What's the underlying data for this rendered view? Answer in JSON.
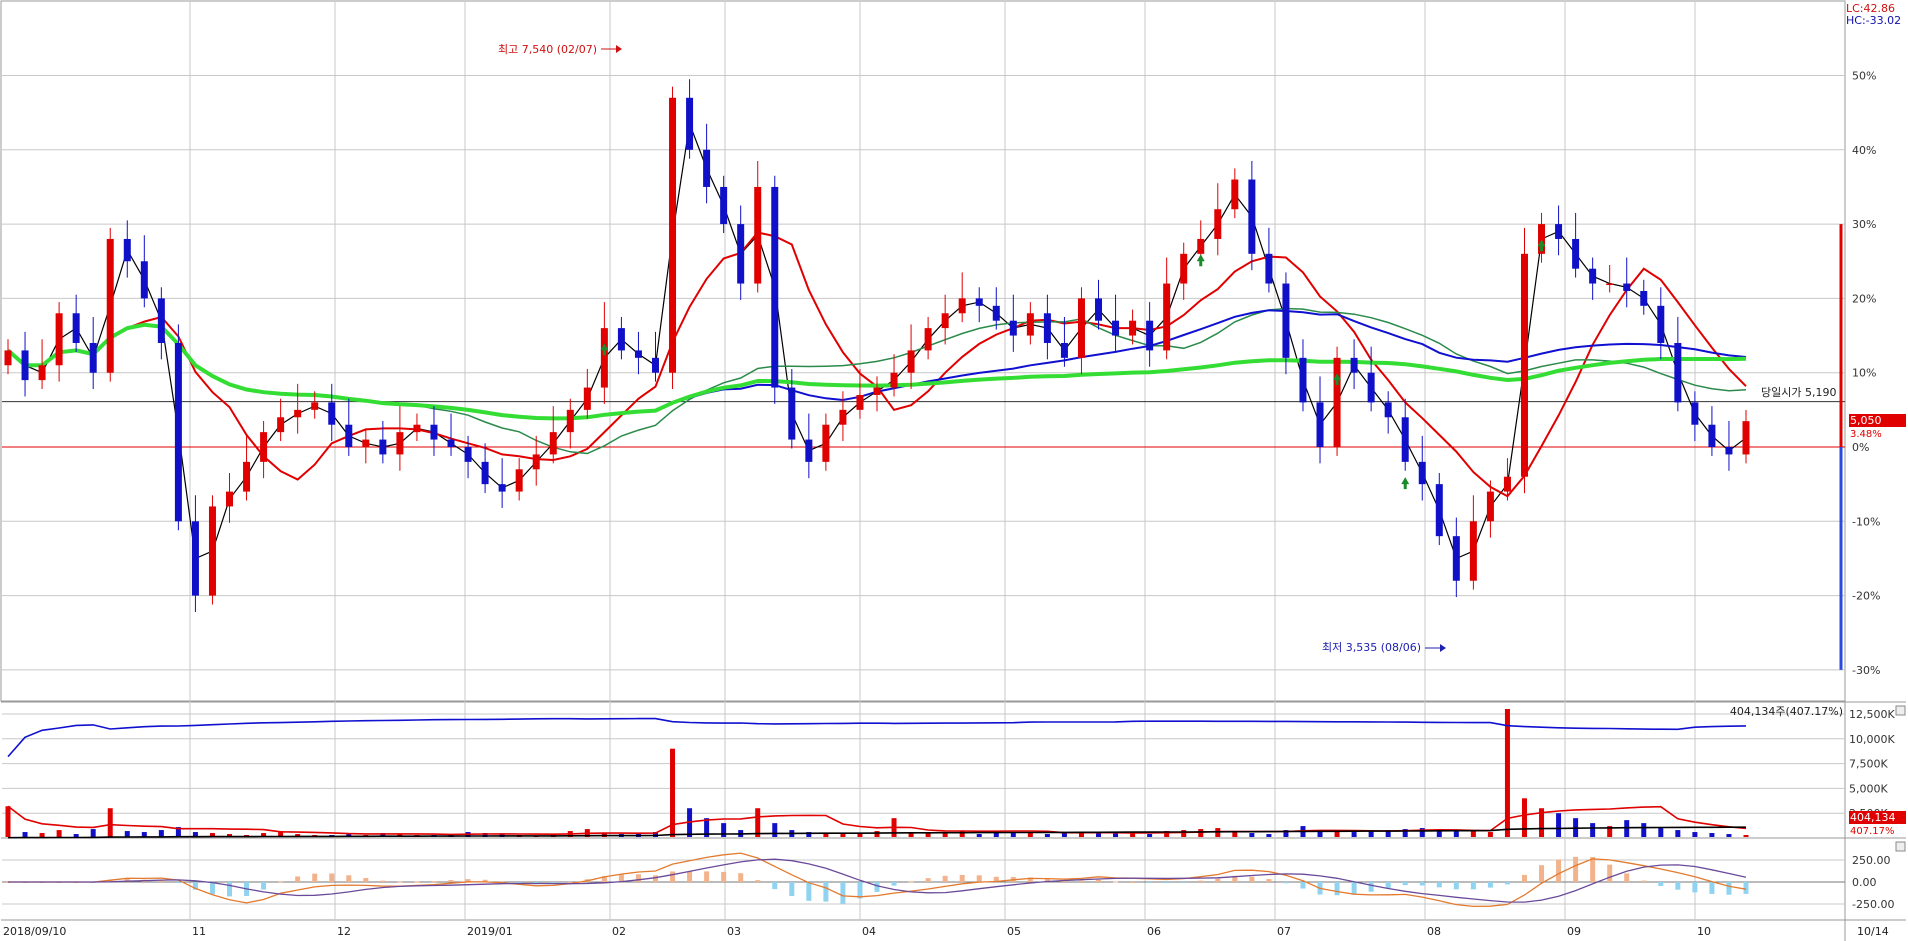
{
  "header": {
    "lc_label": "LC:42.86",
    "hc_label": "HC:-33.02"
  },
  "chart_data": [
    {
      "type": "candlestick",
      "panel": "price",
      "y_axis_ticks": [
        "50%",
        "40%",
        "30%",
        "20%",
        "10%",
        "0%",
        "-10%",
        "-20%",
        "-30%"
      ],
      "y_axis_values": [
        50,
        40,
        30,
        20,
        10,
        0,
        -10,
        -20,
        -30
      ],
      "ylim": [
        -33.02,
        42.86
      ],
      "x_axis_labels": [
        "2018/09/10",
        "11",
        "12",
        "2019/01",
        "02",
        "03",
        "04",
        "05",
        "06",
        "07",
        "08",
        "09",
        "10",
        "10/14"
      ],
      "annotations": {
        "high": "최고 7,540 (02/07)",
        "low": "최저 3,535 (08/06)",
        "open_today": "당일시가 5,190",
        "current_price": "5,050",
        "current_change": "3.48%"
      },
      "reference_open_pct": 6.1,
      "current_pct": 3.48,
      "series": [
        {
          "role": "price",
          "close_pct": [
            13,
            9,
            11,
            18,
            14,
            10,
            28,
            25,
            20,
            14,
            -10,
            -20,
            -8,
            -6,
            -2,
            2,
            4,
            5,
            6,
            3,
            0,
            1,
            -1,
            2,
            3,
            1,
            0,
            -2,
            -5,
            -6,
            -3,
            -1,
            2,
            5,
            8,
            16,
            13,
            12,
            10,
            47,
            40,
            35,
            30,
            22,
            35,
            8,
            1,
            -2,
            3,
            5,
            7,
            8,
            10,
            13,
            16,
            18,
            20,
            19,
            17,
            15,
            18,
            14,
            12,
            20,
            17,
            15,
            17,
            13,
            22,
            26,
            28,
            32,
            36,
            26,
            22,
            12,
            6,
            0,
            12,
            10,
            6,
            4,
            -2,
            -5,
            -12,
            -18,
            -10,
            -6,
            -4,
            26,
            30,
            28,
            24,
            22,
            22,
            21,
            19,
            14,
            6,
            3,
            0,
            -1,
            3.48
          ]
        },
        {
          "role": "ma5",
          "color": "#000000"
        },
        {
          "role": "ma20",
          "color": "#e00000"
        },
        {
          "role": "ma60",
          "color": "#2a8a4a"
        },
        {
          "role": "ma120",
          "color": "#1010d0"
        },
        {
          "role": "ma240",
          "color": "#33dd33"
        }
      ]
    },
    {
      "type": "bar+line",
      "panel": "volume",
      "y_axis_ticks": [
        "12,500K",
        "10,000K",
        "7,500K",
        "5,000K",
        "2,500K"
      ],
      "y_axis_values": [
        12500,
        10000,
        7500,
        5000,
        2500
      ],
      "ylim": [
        0,
        13200
      ],
      "y_unit": "K",
      "annotations": {
        "cumulative_label": "404,134주(407.17%)",
        "badge_value": "404,134",
        "badge_pct": "407.17%"
      },
      "volume": [
        3200,
        600,
        500,
        800,
        400,
        900,
        3000,
        700,
        600,
        800,
        1100,
        600,
        500,
        400,
        300,
        500,
        700,
        400,
        300,
        300,
        400,
        300,
        500,
        400,
        300,
        300,
        400,
        600,
        500,
        400,
        300,
        200,
        400,
        700,
        900,
        500,
        400,
        500,
        600,
        9000,
        3000,
        2000,
        1500,
        800,
        3000,
        1500,
        800,
        600,
        500,
        400,
        500,
        700,
        2000,
        600,
        500,
        600,
        700,
        400,
        500,
        600,
        500,
        400,
        500,
        600,
        500,
        600,
        500,
        400,
        700,
        800,
        900,
        1000,
        600,
        500,
        400,
        800,
        1200,
        800,
        700,
        600,
        700,
        800,
        900,
        1000,
        800,
        700,
        700,
        600,
        13000,
        4000,
        3000,
        2500,
        2000,
        1500,
        1200,
        1800,
        1500,
        1000,
        800,
        600,
        500,
        400,
        300
      ]
    },
    {
      "type": "bar+line",
      "panel": "macd",
      "y_axis_ticks": [
        "250.00",
        "0.00",
        "-250.00"
      ],
      "y_axis_values": [
        250,
        0,
        -250
      ],
      "ylim": [
        -300,
        350
      ]
    }
  ],
  "colors": {
    "up": "#e00000",
    "down": "#1010c8",
    "grid": "#c8c8c8",
    "axis_bg": "#ffffff",
    "zero_line": "#e00000",
    "open_line": "#000000",
    "oscillator_hist_pos": "#f2b38c",
    "oscillator_hist_neg": "#8fd3f0",
    "macd_line": "#e37a2e",
    "signal_line": "#6a4a9a"
  }
}
